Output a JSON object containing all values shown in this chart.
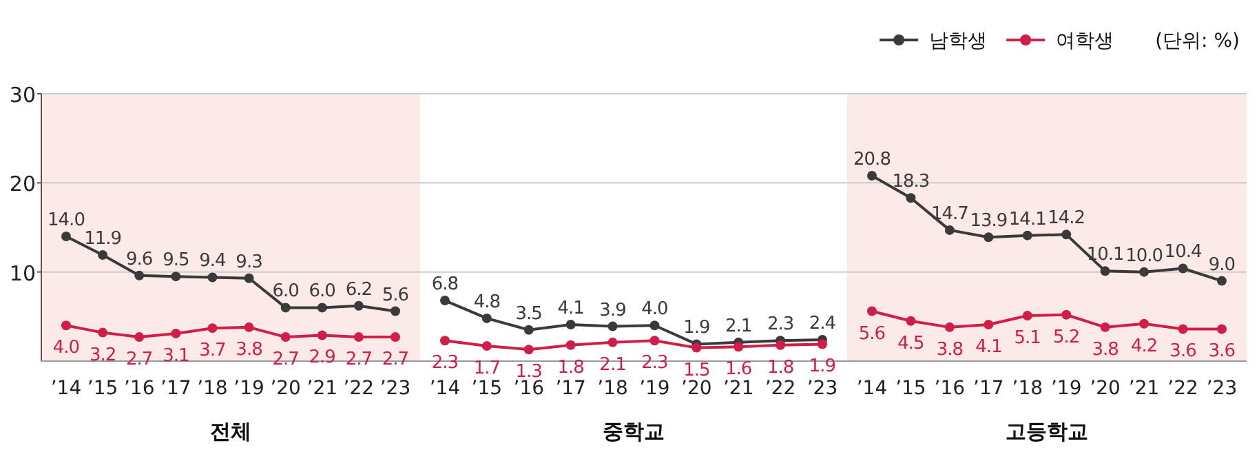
{
  "chart_data": [
    {
      "type": "line",
      "xlabel": "전체",
      "categories": [
        "’14",
        "’15",
        "’16",
        "’17",
        "’18",
        "’19",
        "’20",
        "’21",
        "’22",
        "’23"
      ],
      "ylim": [
        0,
        30
      ],
      "yticks": [
        10,
        20,
        30
      ],
      "grid": "y",
      "marker": "circle",
      "series": [
        {
          "color": "#3a3a3a",
          "values": [
            14.0,
            11.9,
            9.6,
            9.5,
            9.4,
            9.3,
            6.0,
            6.0,
            6.2,
            5.6
          ],
          "value_labels": [
            "14.0",
            "11.9",
            "9.6",
            "9.5",
            "9.4",
            "9.3",
            "6.0",
            "6.0",
            "6.2",
            "5.6"
          ]
        },
        {
          "color": "#d01e48",
          "values": [
            4.0,
            3.2,
            2.7,
            3.1,
            3.7,
            3.8,
            2.7,
            2.9,
            2.7,
            2.7
          ],
          "value_labels": [
            "4.0",
            "3.2",
            "2.7",
            "3.1",
            "3.7",
            "3.8",
            "2.7",
            "2.9",
            "2.7",
            "2.7"
          ]
        }
      ]
    },
    {
      "type": "line",
      "xlabel": "중학교",
      "categories": [
        "’14",
        "’15",
        "’16",
        "’17",
        "’18",
        "’19",
        "’20",
        "’21",
        "’22",
        "’23"
      ],
      "ylim": [
        0,
        30
      ],
      "yticks": [
        10,
        20,
        30
      ],
      "grid": "y",
      "tick_labels": "x",
      "marker": "circle",
      "series": [
        {
          "color": "#3a3a3a",
          "values": [
            6.8,
            4.8,
            3.5,
            4.1,
            3.9,
            4.0,
            1.9,
            2.1,
            2.3,
            2.4
          ],
          "value_labels": [
            "6.8",
            "4.8",
            "3.5",
            "4.1",
            "3.9",
            "4.0",
            "1.9",
            "2.1",
            "2.3",
            "2.4"
          ]
        },
        {
          "color": "#d01e48",
          "values": [
            2.3,
            1.7,
            1.3,
            1.8,
            2.1,
            2.3,
            1.5,
            1.6,
            1.8,
            1.9
          ],
          "value_labels": [
            "2.3",
            "1.7",
            "1.3",
            "1.8",
            "2.1",
            "2.3",
            "1.5",
            "1.6",
            "1.8",
            "1.9"
          ]
        }
      ]
    },
    {
      "type": "line",
      "xlabel": "고등학교",
      "categories": [
        "’14",
        "’15",
        "’16",
        "’17",
        "’18",
        "’19",
        "’20",
        "’21",
        "’22",
        "’23"
      ],
      "ylim": [
        0,
        30
      ],
      "yticks": [
        10,
        20,
        30
      ],
      "grid": "y",
      "tick_labels": "x",
      "marker": "circle",
      "legend": "top",
      "annotations": [
        "(단위: %)"
      ],
      "series": [
        {
          "name": "남학생",
          "color": "#3a3a3a",
          "values": [
            20.8,
            18.3,
            14.7,
            13.9,
            14.1,
            14.2,
            10.1,
            10.0,
            10.4,
            9.0
          ],
          "value_labels": [
            "20.8",
            "18.3",
            "14.7",
            "13.9",
            "14.1",
            "14.2",
            "10.1",
            "10.0",
            "10.4",
            "9.0"
          ]
        },
        {
          "name": "여학생",
          "color": "#d01e48",
          "values": [
            5.6,
            4.5,
            3.8,
            4.1,
            5.1,
            5.2,
            3.8,
            4.2,
            3.6,
            3.6
          ],
          "value_labels": [
            "5.6",
            "4.5",
            "3.8",
            "4.1",
            "5.1",
            "5.2",
            "3.8",
            "4.2",
            "3.6",
            "3.6"
          ]
        }
      ]
    }
  ]
}
